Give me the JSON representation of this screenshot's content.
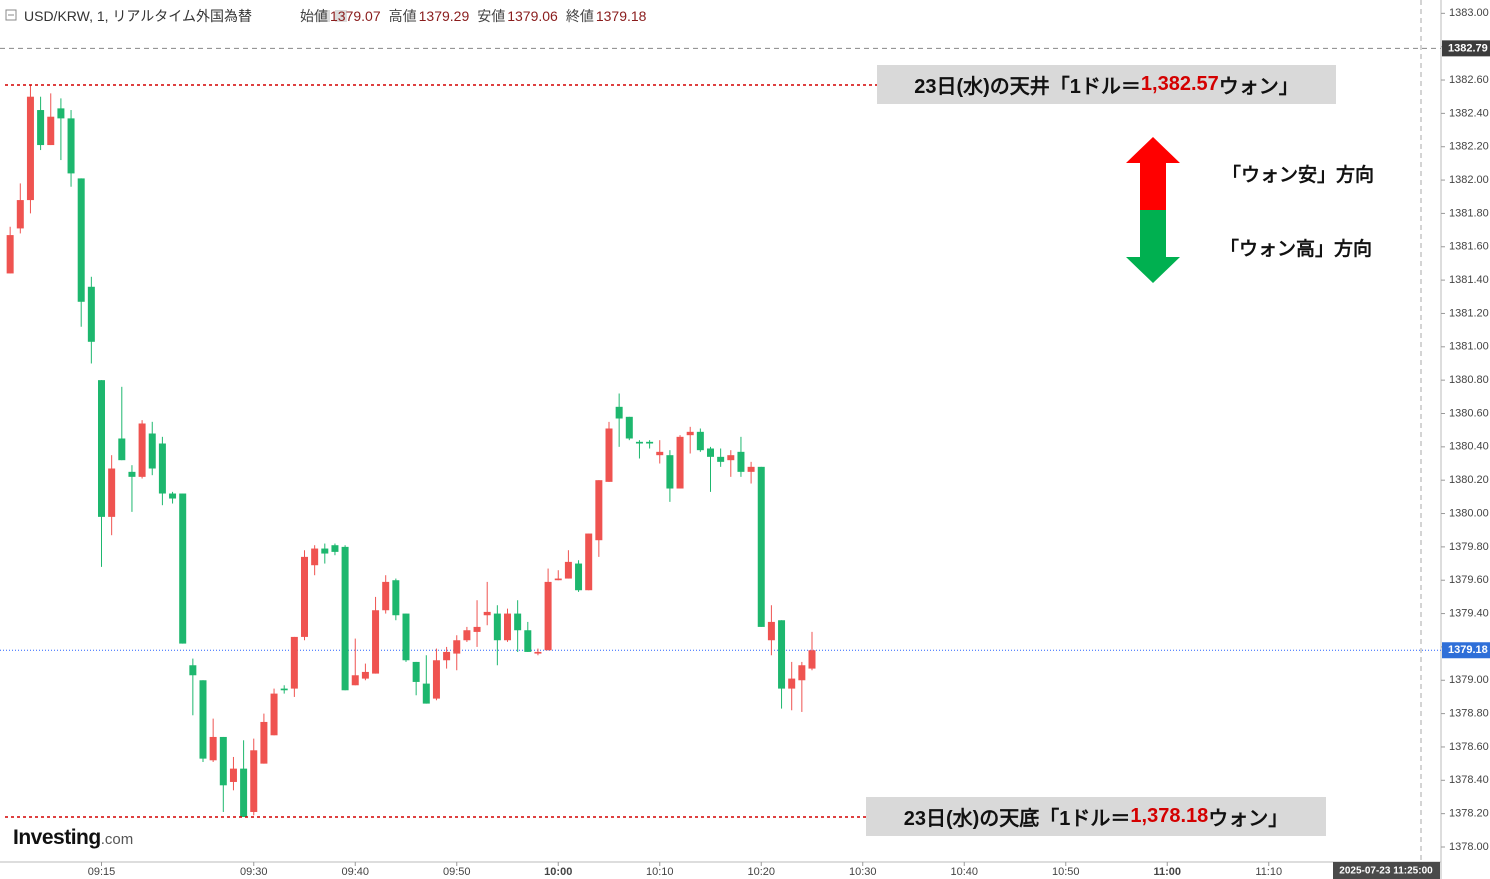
{
  "chart_data": {
    "type": "candlestick",
    "title": "USD/KRW, 1, リアルタイム外国為替",
    "ohlc_labels": [
      "始値",
      "高値",
      "安値",
      "終値"
    ],
    "x": [
      "09:06",
      "09:07",
      "09:08",
      "09:09",
      "09:10",
      "09:11",
      "09:12",
      "09:13",
      "09:14",
      "09:15",
      "09:16",
      "09:17",
      "09:18",
      "09:19",
      "09:20",
      "09:21",
      "09:22",
      "09:23",
      "09:24",
      "09:25",
      "09:26",
      "09:27",
      "09:28",
      "09:29",
      "09:30",
      "09:31",
      "09:32",
      "09:33",
      "09:34",
      "09:35",
      "09:36",
      "09:37",
      "09:38",
      "09:39",
      "09:40",
      "09:41",
      "09:42",
      "09:43",
      "09:44",
      "09:45",
      "09:46",
      "09:47",
      "09:48",
      "09:49",
      "09:50",
      "09:51",
      "09:52",
      "09:53",
      "09:54",
      "09:55",
      "09:56",
      "09:57",
      "09:58",
      "09:59",
      "10:00",
      "10:01",
      "10:02",
      "10:03",
      "10:04",
      "10:05",
      "10:06",
      "10:07",
      "10:08",
      "10:09",
      "10:10",
      "10:11",
      "10:12",
      "10:13",
      "10:14",
      "10:15",
      "10:16",
      "10:17",
      "10:18",
      "10:19",
      "10:20",
      "10:21",
      "10:22",
      "10:23",
      "10:24",
      "10:25"
    ],
    "open": [
      1381.44,
      1381.71,
      1381.88,
      1382.42,
      1382.21,
      1382.43,
      1382.37,
      1382.01,
      1381.36,
      1380.8,
      1379.98,
      1380.45,
      1380.25,
      1380.22,
      1380.48,
      1380.42,
      1380.12,
      1380.12,
      1379.09,
      1379.0,
      1378.52,
      1378.66,
      1378.39,
      1378.47,
      1378.21,
      1378.5,
      1378.67,
      1378.95,
      1378.95,
      1379.26,
      1379.69,
      1379.79,
      1379.81,
      1379.8,
      1378.97,
      1379.01,
      1379.04,
      1379.42,
      1379.6,
      1379.4,
      1379.11,
      1378.98,
      1378.89,
      1379.12,
      1379.16,
      1379.24,
      1379.29,
      1379.39,
      1379.4,
      1379.24,
      1379.4,
      1379.3,
      1379.16,
      1379.18,
      1379.6,
      1379.61,
      1379.7,
      1379.54,
      1379.84,
      1380.19,
      1380.64,
      1380.58,
      1380.43,
      1380.43,
      1380.35,
      1380.35,
      1380.15,
      1380.47,
      1380.49,
      1380.39,
      1380.34,
      1380.32,
      1380.37,
      1380.25,
      1380.28,
      1379.24,
      1379.36,
      1378.95,
      1379.0,
      1379.07
    ],
    "high": [
      1381.72,
      1381.98,
      1382.57,
      1382.5,
      1382.52,
      1382.49,
      1382.42,
      1382.01,
      1381.42,
      1380.8,
      1380.35,
      1380.76,
      1380.29,
      1380.56,
      1380.55,
      1380.46,
      1380.13,
      1380.12,
      1379.13,
      1379.0,
      1378.77,
      1378.66,
      1378.54,
      1378.64,
      1378.65,
      1378.8,
      1378.95,
      1378.97,
      1379.26,
      1379.78,
      1379.81,
      1379.82,
      1379.82,
      1379.81,
      1379.25,
      1379.1,
      1379.5,
      1379.63,
      1379.61,
      1379.4,
      1379.11,
      1379.15,
      1379.19,
      1379.2,
      1379.27,
      1379.32,
      1379.48,
      1379.59,
      1379.45,
      1379.43,
      1379.48,
      1379.35,
      1379.19,
      1379.67,
      1379.66,
      1379.78,
      1379.72,
      1379.88,
      1380.2,
      1380.55,
      1380.72,
      1380.58,
      1380.44,
      1380.44,
      1380.44,
      1380.38,
      1380.47,
      1380.52,
      1380.51,
      1380.4,
      1380.39,
      1380.38,
      1380.46,
      1380.31,
      1380.28,
      1379.45,
      1379.36,
      1379.11,
      1379.11,
      1379.29
    ],
    "low": [
      1381.44,
      1381.68,
      1381.8,
      1382.18,
      1382.21,
      1382.12,
      1381.96,
      1381.12,
      1380.9,
      1379.68,
      1379.87,
      1380.32,
      1380.01,
      1380.21,
      1380.23,
      1380.05,
      1380.06,
      1379.22,
      1378.79,
      1378.51,
      1378.51,
      1378.21,
      1378.34,
      1378.18,
      1378.19,
      1378.5,
      1378.67,
      1378.92,
      1378.9,
      1379.24,
      1379.63,
      1379.7,
      1379.75,
      1378.94,
      1378.97,
      1379.0,
      1379.04,
      1379.4,
      1379.36,
      1379.11,
      1378.91,
      1378.86,
      1378.88,
      1379.07,
      1379.06,
      1379.23,
      1379.2,
      1379.33,
      1379.09,
      1379.23,
      1379.17,
      1379.17,
      1379.15,
      1379.18,
      1379.6,
      1379.61,
      1379.53,
      1379.54,
      1379.74,
      1380.19,
      1380.4,
      1380.44,
      1380.33,
      1380.39,
      1380.3,
      1380.07,
      1380.15,
      1380.36,
      1380.37,
      1380.13,
      1380.28,
      1380.22,
      1380.22,
      1380.18,
      1379.32,
      1379.15,
      1378.83,
      1378.82,
      1378.81,
      1379.06
    ],
    "close": [
      1381.67,
      1381.88,
      1382.5,
      1382.21,
      1382.38,
      1382.37,
      1382.04,
      1381.27,
      1381.03,
      1379.98,
      1380.27,
      1380.32,
      1380.22,
      1380.54,
      1380.27,
      1380.12,
      1380.09,
      1379.22,
      1379.03,
      1378.53,
      1378.66,
      1378.37,
      1378.47,
      1378.18,
      1378.58,
      1378.75,
      1378.92,
      1378.94,
      1379.26,
      1379.74,
      1379.79,
      1379.76,
      1379.77,
      1378.94,
      1379.03,
      1379.05,
      1379.42,
      1379.59,
      1379.39,
      1379.12,
      1378.99,
      1378.86,
      1379.12,
      1379.17,
      1379.24,
      1379.3,
      1379.32,
      1379.41,
      1379.24,
      1379.4,
      1379.3,
      1379.17,
      1379.17,
      1379.59,
      1379.61,
      1379.71,
      1379.54,
      1379.88,
      1380.2,
      1380.51,
      1380.57,
      1380.45,
      1380.42,
      1380.42,
      1380.37,
      1380.15,
      1380.46,
      1380.49,
      1380.38,
      1380.34,
      1380.31,
      1380.35,
      1380.25,
      1380.28,
      1379.32,
      1379.35,
      1378.95,
      1379.01,
      1379.09,
      1379.18
    ],
    "up_color": "#ef5350",
    "down_color": "#1db76e",
    "ylim": [
      1377.91,
      1383.08
    ],
    "yticks": [
      {
        "value": 1378,
        "label": "1378.00"
      },
      {
        "value": 1378.2,
        "label": "1378.20"
      },
      {
        "value": 1378.4,
        "label": "1378.40"
      },
      {
        "value": 1378.6,
        "label": "1378.60"
      },
      {
        "value": 1378.8,
        "label": "1378.80"
      },
      {
        "value": 1379,
        "label": "1379.00"
      },
      {
        "value": 1379.2,
        "label": "1379.20"
      },
      {
        "value": 1379.4,
        "label": "1379.40"
      },
      {
        "value": 1379.6,
        "label": "1379.60"
      },
      {
        "value": 1379.8,
        "label": "1379.80"
      },
      {
        "value": 1380,
        "label": "1380.00"
      },
      {
        "value": 1380.2,
        "label": "1380.20"
      },
      {
        "value": 1380.4,
        "label": "1380.40"
      },
      {
        "value": 1380.6,
        "label": "1380.60"
      },
      {
        "value": 1380.8,
        "label": "1380.80"
      },
      {
        "value": 1381,
        "label": "1381.00"
      },
      {
        "value": 1381.2,
        "label": "1381.20"
      },
      {
        "value": 1381.4,
        "label": "1381.40"
      },
      {
        "value": 1381.6,
        "label": "1381.60"
      },
      {
        "value": 1381.8,
        "label": "1381.80"
      },
      {
        "value": 1382,
        "label": "1382.00"
      },
      {
        "value": 1382.2,
        "label": "1382.20"
      },
      {
        "value": 1382.4,
        "label": "1382.40"
      },
      {
        "value": 1382.6,
        "label": "1382.60"
      },
      {
        "value": 1382.8,
        "label": "1382.80"
      },
      {
        "value": 1383,
        "label": "1383.00"
      }
    ],
    "xlim": [
      "09:05",
      "11:25"
    ],
    "xticks": [
      "09:15",
      "09:30",
      "09:40",
      "09:50",
      "10:00",
      "10:10",
      "10:20",
      "10:30",
      "10:40",
      "10:50",
      "11:00",
      "11:10"
    ],
    "crosshair": {
      "y": 1382.79,
      "time": "2025-07-23 11:25:00"
    },
    "annotations": [
      {
        "text_before": "23日(水)の天井「1ドル＝",
        "value": 1382.57,
        "value_label": "1,382.57",
        "text_after": "ウォン」",
        "color": "#d40000"
      },
      {
        "text_before": "23日(水)の天底「1ドル＝",
        "value": 1378.18,
        "value_label": "1,378.18",
        "text_after": "ウォン」",
        "color": "#d40000"
      }
    ],
    "direction_legend": [
      {
        "text": "「ウォン安」方向",
        "color": "#ff0000"
      },
      {
        "text": "「ウォン高」方向",
        "color": "#00b050"
      }
    ],
    "logo": "Investing",
    "logo_suffix": ".com"
  }
}
